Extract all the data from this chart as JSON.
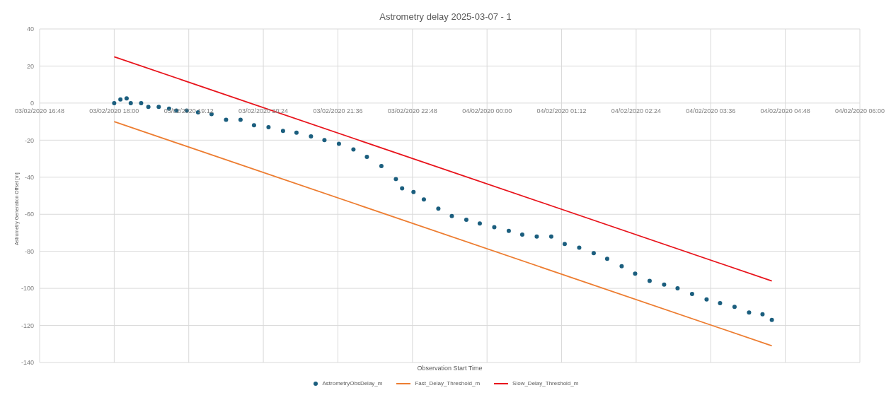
{
  "chart_data": {
    "type": "scatter",
    "title": "Astrometry delay 2025-03-07 - 1",
    "xlabel": "Observation Start Time",
    "ylabel": "Astrometry Generation Offset [m]",
    "xlim": [
      "2020-02-03T16:48",
      "2020-02-04T06:00"
    ],
    "xticks": [
      {
        "value": "2020-02-03T16:48",
        "label": "03/02/2020 16:48"
      },
      {
        "value": "2020-02-03T18:00",
        "label": "03/02/2020 18:00"
      },
      {
        "value": "2020-02-03T19:12",
        "label": "03/02/2020 19:12"
      },
      {
        "value": "2020-02-03T20:24",
        "label": "03/02/2020 20:24"
      },
      {
        "value": "2020-02-03T21:36",
        "label": "03/02/2020 21:36"
      },
      {
        "value": "2020-02-03T22:48",
        "label": "03/02/2020 22:48"
      },
      {
        "value": "2020-02-04T00:00",
        "label": "04/02/2020 00:00"
      },
      {
        "value": "2020-02-04T01:12",
        "label": "04/02/2020 01:12"
      },
      {
        "value": "2020-02-04T02:24",
        "label": "04/02/2020 02:24"
      },
      {
        "value": "2020-02-04T03:36",
        "label": "04/02/2020 03:36"
      },
      {
        "value": "2020-02-04T04:48",
        "label": "04/02/2020 04:48"
      },
      {
        "value": "2020-02-04T06:00",
        "label": "04/02/2020 06:00"
      }
    ],
    "ylim": [
      -140,
      40
    ],
    "yticks": [
      -140,
      -120,
      -100,
      -80,
      -60,
      -40,
      -20,
      0,
      20,
      40
    ],
    "grid": true,
    "legend": "bottom",
    "series": [
      {
        "name": "AstrometryObsDelay_m",
        "marker": "circle",
        "color": "#1b5e7e",
        "x": [
          "2020-02-03T18:00",
          "2020-02-03T18:06",
          "2020-02-03T18:12",
          "2020-02-03T18:16",
          "2020-02-03T18:26",
          "2020-02-03T18:33",
          "2020-02-03T18:43",
          "2020-02-03T18:53",
          "2020-02-03T19:00",
          "2020-02-03T19:10",
          "2020-02-03T19:21",
          "2020-02-03T19:34",
          "2020-02-03T19:48",
          "2020-02-03T20:02",
          "2020-02-03T20:15",
          "2020-02-03T20:29",
          "2020-02-03T20:43",
          "2020-02-03T20:56",
          "2020-02-03T21:10",
          "2020-02-03T21:23",
          "2020-02-03T21:37",
          "2020-02-03T21:51",
          "2020-02-03T22:04",
          "2020-02-03T22:18",
          "2020-02-03T22:32",
          "2020-02-03T22:38",
          "2020-02-03T22:49",
          "2020-02-03T22:59",
          "2020-02-03T23:13",
          "2020-02-03T23:26",
          "2020-02-03T23:40",
          "2020-02-03T23:53",
          "2020-02-04T00:07",
          "2020-02-04T00:21",
          "2020-02-04T00:34",
          "2020-02-04T00:48",
          "2020-02-04T01:02",
          "2020-02-04T01:15",
          "2020-02-04T01:29",
          "2020-02-04T01:43",
          "2020-02-04T01:56",
          "2020-02-04T02:10",
          "2020-02-04T02:23",
          "2020-02-04T02:37",
          "2020-02-04T02:51",
          "2020-02-04T03:04",
          "2020-02-04T03:18",
          "2020-02-04T03:32",
          "2020-02-04T03:45",
          "2020-02-04T03:59",
          "2020-02-04T04:13",
          "2020-02-04T04:26",
          "2020-02-04T04:35"
        ],
        "values": [
          0,
          2,
          2.5,
          0,
          0,
          -2,
          -2,
          -3,
          -4,
          -4,
          -5,
          -6,
          -9,
          -9,
          -12,
          -13,
          -15,
          -16,
          -18,
          -20,
          -22,
          -25,
          -29,
          -34,
          -41,
          -46,
          -48,
          -52,
          -57,
          -61,
          -63,
          -65,
          -67,
          -69,
          -71,
          -72,
          -72,
          -76,
          -78,
          -81,
          -84,
          -88,
          -92,
          -96,
          -98,
          -100,
          -103,
          -106,
          -108,
          -110,
          -113,
          -114,
          -117
        ]
      },
      {
        "name": "Fast_Delay_Threshold_m",
        "type": "line",
        "color": "#ed7d31",
        "x": [
          "2020-02-03T18:00",
          "2020-02-04T04:35"
        ],
        "values": [
          -10,
          -131
        ]
      },
      {
        "name": "Slow_Delay_Threshold_m",
        "type": "line",
        "color": "#e8141c",
        "x": [
          "2020-02-03T18:00",
          "2020-02-04T04:35"
        ],
        "values": [
          25,
          -96
        ]
      }
    ]
  }
}
